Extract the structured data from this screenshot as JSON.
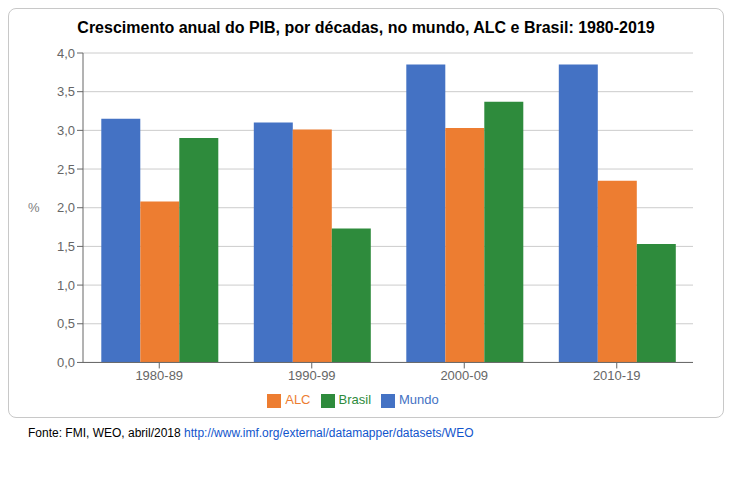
{
  "chart_data": {
    "type": "bar",
    "title": "Crescimento anual do PIB, por décadas, no mundo, ALC e Brasil: 1980-2019",
    "categories": [
      "1980-89",
      "1990-99",
      "2000-09",
      "2010-19"
    ],
    "series": [
      {
        "name": "Mundo",
        "color": "#4472c4",
        "values": [
          3.15,
          3.1,
          3.85,
          3.85
        ]
      },
      {
        "name": "ALC",
        "color": "#ed7d31",
        "values": [
          2.08,
          3.01,
          3.03,
          2.35
        ]
      },
      {
        "name": "Brasil",
        "color": "#2e8b3c",
        "values": [
          2.9,
          1.73,
          3.37,
          1.53
        ]
      }
    ],
    "ylabel": "%",
    "ylim": [
      0,
      4.0
    ],
    "yticks": [
      {
        "value": 0.0,
        "label": "0,0"
      },
      {
        "value": 0.5,
        "label": "0,5"
      },
      {
        "value": 1.0,
        "label": "1,0"
      },
      {
        "value": 1.5,
        "label": "1,5"
      },
      {
        "value": 2.0,
        "label": "2,0"
      },
      {
        "value": 2.5,
        "label": "2,5"
      },
      {
        "value": 3.0,
        "label": "3,0"
      },
      {
        "value": 3.5,
        "label": "3,5"
      },
      {
        "value": 4.0,
        "label": "4,0"
      }
    ],
    "grid": true,
    "legend": "bottom",
    "annotations": [
      "Fonte: FMI, WEO, abril/2018 ",
      "http://www.imf.org/external/datamapper/datasets/WEO"
    ]
  }
}
